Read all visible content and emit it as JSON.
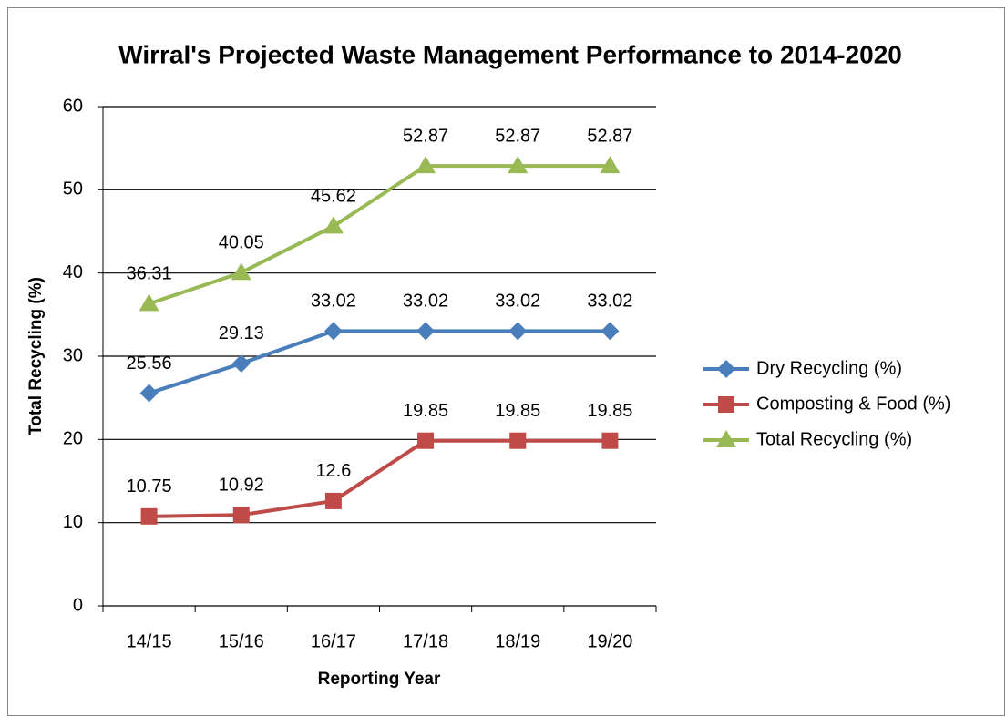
{
  "chart_data": {
    "type": "line",
    "title": "Wirral's Projected Waste Management Performance to 2014-2020",
    "xlabel": "Reporting Year",
    "ylabel": "Total Recycling (%)",
    "categories": [
      "14/15",
      "15/16",
      "16/17",
      "17/18",
      "18/19",
      "19/20"
    ],
    "series": [
      {
        "name": "Dry Recycling (%)",
        "color": "#4a7ebb",
        "marker": "diamond",
        "values": [
          25.56,
          29.13,
          33.02,
          33.02,
          33.02,
          33.02
        ]
      },
      {
        "name": "Composting & Food (%)",
        "color": "#be4b48",
        "marker": "square",
        "values": [
          10.75,
          10.92,
          12.6,
          19.85,
          19.85,
          19.85
        ]
      },
      {
        "name": "Total Recycling (%)",
        "color": "#98b954",
        "marker": "triangle",
        "values": [
          36.31,
          40.05,
          45.62,
          52.87,
          52.87,
          52.87
        ]
      }
    ],
    "ylim": [
      0,
      60
    ],
    "yticks": [
      0,
      10,
      20,
      30,
      40,
      50,
      60
    ],
    "grid": true,
    "legend": "right"
  }
}
